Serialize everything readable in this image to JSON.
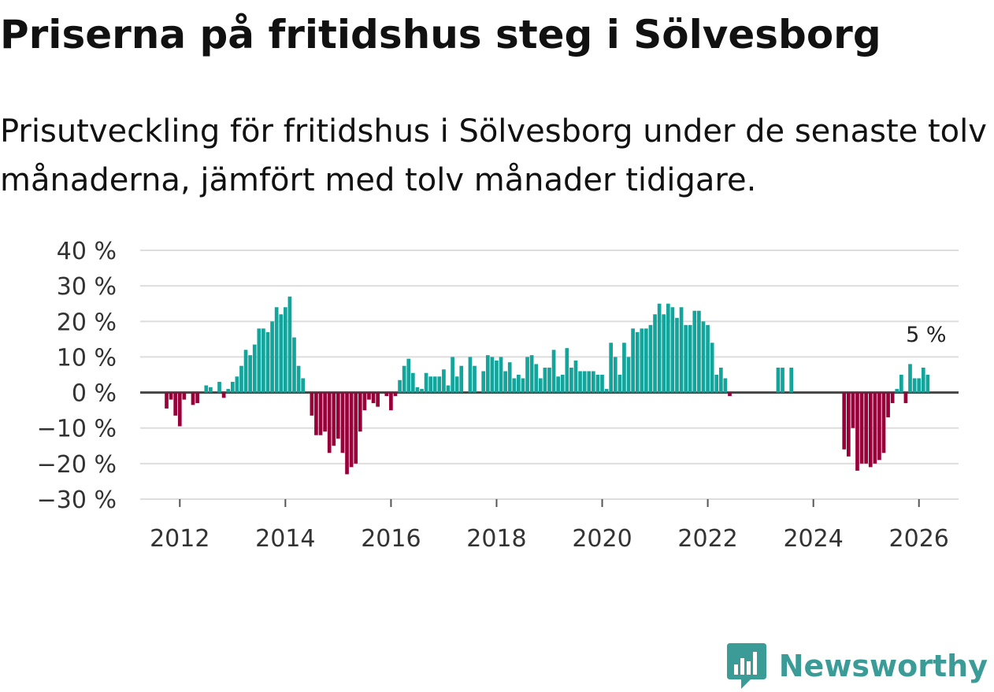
{
  "title": "Priserna på fritidshus steg i Sölvesborg",
  "subtitle": "Prisutveckling för fritidshus i Sölvesborg under de senaste tolv månaderna, jämfört med tolv månader tidigare.",
  "brand": {
    "name": "Newsworthy"
  },
  "colors": {
    "positive": "#13a49b",
    "negative": "#99003a",
    "grid": "#dddddd",
    "zero": "#444444"
  },
  "chart_data": {
    "type": "bar",
    "title": "Priserna på fritidshus steg i Sölvesborg",
    "ylabel": "",
    "xlabel": "",
    "ylim": [
      -30,
      40
    ],
    "xlim": [
      2011.25,
      2026.75
    ],
    "yticks": [
      -30,
      -20,
      -10,
      0,
      10,
      20,
      30,
      40
    ],
    "ytick_labels": [
      "−30 %",
      "−20 %",
      "−10 %",
      "0 %",
      "10 %",
      "20 %",
      "30 %",
      "40 %"
    ],
    "xticks": [
      2012,
      2014,
      2016,
      2018,
      2020,
      2022,
      2024,
      2026
    ],
    "xtick_labels": [
      "2012",
      "2014",
      "2016",
      "2018",
      "2020",
      "2022",
      "2024",
      "2026"
    ],
    "start": 2011.0,
    "step": 0.08333,
    "values": [
      null,
      null,
      null,
      null,
      null,
      null,
      null,
      null,
      null,
      -4.5,
      -2,
      -6.5,
      -9.5,
      -2,
      null,
      -3.5,
      -3,
      null,
      2,
      1.5,
      null,
      3,
      -1.5,
      1,
      3,
      4.5,
      7.5,
      12,
      10.5,
      13.5,
      18,
      18,
      17,
      20,
      24,
      22,
      24,
      27,
      15.5,
      7.5,
      4,
      null,
      -6.5,
      -12,
      -12,
      -11,
      -17,
      -15,
      -13,
      -17,
      -23,
      -21,
      -20,
      -11,
      -5,
      -2,
      -3,
      -4,
      null,
      -1,
      -5,
      -1,
      3.5,
      7.5,
      9.5,
      5.5,
      1.5,
      1,
      5.5,
      4.5,
      4.5,
      4.5,
      6.5,
      2,
      10,
      4.5,
      7.5,
      null,
      10,
      7.5,
      null,
      6,
      10.5,
      10,
      9,
      10,
      6,
      8.5,
      4,
      5,
      4,
      10,
      10.5,
      8,
      4,
      7,
      7,
      12,
      4.5,
      5,
      12.5,
      7,
      9,
      6,
      6,
      6,
      6,
      5,
      5,
      1,
      14,
      10,
      5,
      14,
      10,
      18,
      17,
      18,
      18,
      19,
      22,
      25,
      22,
      25,
      24,
      21,
      24,
      19,
      19,
      23,
      23,
      20,
      19,
      14,
      5,
      7,
      4,
      -1,
      null,
      null,
      null,
      null,
      null,
      null,
      null,
      null,
      null,
      null,
      7,
      7,
      null,
      7,
      null,
      null,
      null,
      null,
      null,
      null,
      null,
      null,
      null,
      null,
      null,
      -16,
      -18,
      -10,
      -22,
      -20,
      -20,
      -21,
      -20,
      -19,
      -17,
      -7,
      -3,
      1,
      5,
      -3,
      8,
      4,
      4,
      7,
      5
    ],
    "annotation": {
      "text": "5 %",
      "value": 5
    }
  }
}
